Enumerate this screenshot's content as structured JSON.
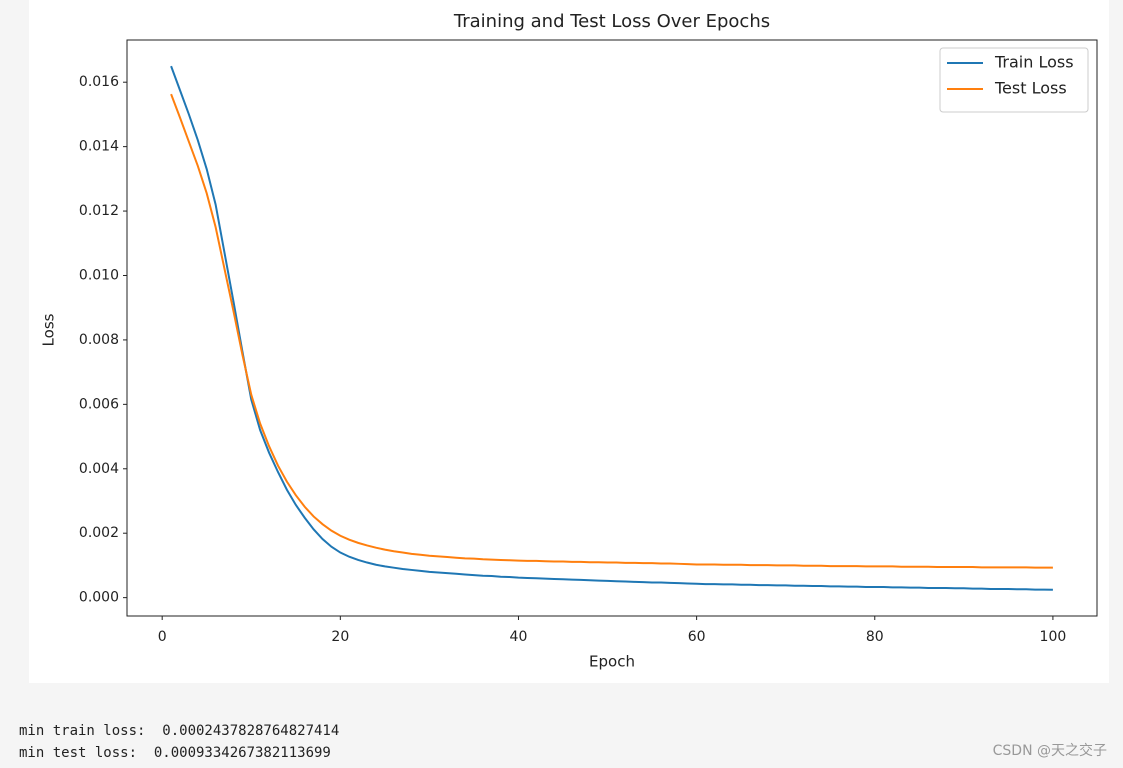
{
  "chart_data": {
    "type": "line",
    "title": "Training and Test Loss Over Epochs",
    "xlabel": "Epoch",
    "ylabel": "Loss",
    "x": [
      1,
      2,
      3,
      4,
      5,
      6,
      7,
      8,
      9,
      10,
      11,
      12,
      13,
      14,
      15,
      16,
      17,
      18,
      19,
      20,
      21,
      22,
      23,
      24,
      25,
      26,
      27,
      28,
      29,
      30,
      31,
      32,
      33,
      34,
      35,
      36,
      37,
      38,
      39,
      40,
      41,
      42,
      43,
      44,
      45,
      46,
      47,
      48,
      49,
      50,
      51,
      52,
      53,
      54,
      55,
      56,
      57,
      58,
      59,
      60,
      61,
      62,
      63,
      64,
      65,
      66,
      67,
      68,
      69,
      70,
      71,
      72,
      73,
      74,
      75,
      76,
      77,
      78,
      79,
      80,
      81,
      82,
      83,
      84,
      85,
      86,
      87,
      88,
      89,
      90,
      91,
      92,
      93,
      94,
      95,
      96,
      97,
      98,
      99,
      100
    ],
    "series": [
      {
        "name": "Train Loss",
        "color": "#1f77b4",
        "values": [
          0.0165,
          0.01575,
          0.015,
          0.0142,
          0.0133,
          0.0122,
          0.0107,
          0.0092,
          0.00765,
          0.00615,
          0.0052,
          0.0045,
          0.0039,
          0.00335,
          0.00288,
          0.00248,
          0.00212,
          0.00182,
          0.00158,
          0.0014,
          0.00127,
          0.00117,
          0.00109,
          0.00102,
          0.00097,
          0.00093,
          0.00089,
          0.00086,
          0.00083,
          0.0008,
          0.00078,
          0.00076,
          0.00074,
          0.00072,
          0.0007,
          0.00068,
          0.00067,
          0.00065,
          0.00064,
          0.00062,
          0.00061,
          0.0006,
          0.00059,
          0.00058,
          0.00057,
          0.00056,
          0.00055,
          0.00054,
          0.00053,
          0.00052,
          0.00051,
          0.0005,
          0.00049,
          0.00048,
          0.00047,
          0.00047,
          0.00046,
          0.00045,
          0.00044,
          0.00043,
          0.00042,
          0.00042,
          0.00041,
          0.00041,
          0.0004,
          0.0004,
          0.00039,
          0.00039,
          0.00038,
          0.00038,
          0.00037,
          0.00037,
          0.00036,
          0.00036,
          0.00035,
          0.00035,
          0.00034,
          0.00034,
          0.00033,
          0.00033,
          0.00033,
          0.00032,
          0.00032,
          0.00031,
          0.00031,
          0.0003,
          0.0003,
          0.0003,
          0.00029,
          0.00029,
          0.00028,
          0.00028,
          0.00027,
          0.00027,
          0.00027,
          0.00026,
          0.00026,
          0.00025,
          0.00025,
          0.000244
        ]
      },
      {
        "name": "Test Loss",
        "color": "#ff7f0e",
        "values": [
          0.01563,
          0.0149,
          0.01415,
          0.0134,
          0.01255,
          0.0115,
          0.0102,
          0.0089,
          0.00755,
          0.0063,
          0.0054,
          0.0047,
          0.0041,
          0.0036,
          0.00318,
          0.00282,
          0.00252,
          0.00228,
          0.00208,
          0.00192,
          0.0018,
          0.0017,
          0.00162,
          0.00155,
          0.00149,
          0.00144,
          0.0014,
          0.00136,
          0.00133,
          0.0013,
          0.00128,
          0.00126,
          0.00124,
          0.00122,
          0.00121,
          0.00119,
          0.00118,
          0.00117,
          0.00116,
          0.00115,
          0.00114,
          0.00114,
          0.00113,
          0.00112,
          0.00112,
          0.00111,
          0.00111,
          0.0011,
          0.0011,
          0.00109,
          0.00109,
          0.00108,
          0.00108,
          0.00107,
          0.00107,
          0.00106,
          0.00106,
          0.00105,
          0.00104,
          0.00103,
          0.00103,
          0.00103,
          0.00102,
          0.00102,
          0.00102,
          0.00101,
          0.00101,
          0.00101,
          0.001,
          0.001,
          0.001,
          0.00099,
          0.00099,
          0.00099,
          0.00098,
          0.00098,
          0.00098,
          0.00098,
          0.00097,
          0.00097,
          0.00097,
          0.00097,
          0.00096,
          0.00096,
          0.00096,
          0.00096,
          0.00095,
          0.00095,
          0.00095,
          0.00095,
          0.00095,
          0.00094,
          0.00094,
          0.00094,
          0.00094,
          0.00094,
          0.00094,
          0.00093,
          0.00093,
          0.000933
        ]
      }
    ],
    "xlim": [
      -3.95,
      104.95
    ],
    "xticks": [
      0,
      20,
      40,
      60,
      80,
      100
    ],
    "ylim": [
      -0.00057,
      0.01731
    ],
    "yticks": [
      {
        "value": 0,
        "label": "0.000"
      },
      {
        "value": 0.002,
        "label": "0.002"
      },
      {
        "value": 0.004,
        "label": "0.004"
      },
      {
        "value": 0.006,
        "label": "0.006"
      },
      {
        "value": 0.008,
        "label": "0.008"
      },
      {
        "value": 0.01,
        "label": "0.010"
      },
      {
        "value": 0.012,
        "label": "0.012"
      },
      {
        "value": 0.014,
        "label": "0.014"
      },
      {
        "value": 0.016,
        "label": "0.016"
      }
    ],
    "legend": "upper right",
    "grid": false
  },
  "output": [
    "min train loss:  0.0002437828764827414",
    "min test loss:  0.0009334267382113699"
  ],
  "watermark": "CSDN @天之交子"
}
